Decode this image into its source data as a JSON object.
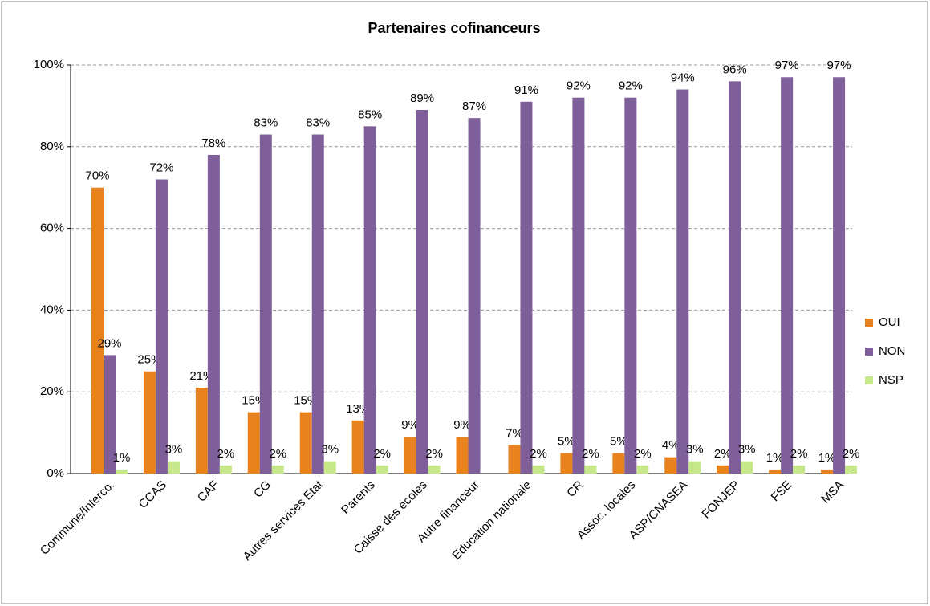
{
  "chart_data": {
    "type": "bar",
    "title": "Partenaires cofinanceurs",
    "categories": [
      "Commune/Interco.",
      "CCAS",
      "CAF",
      "CG",
      "Autres services Etat",
      "Parents",
      "Caisse des écoles",
      "Autre financeur",
      "Education nationale",
      "CR",
      "Assoc. locales",
      "ASP/CNASEA",
      "FONJEP",
      "FSE",
      "MSA"
    ],
    "series": [
      {
        "name": "OUI",
        "color": "#e8821e",
        "values": [
          70,
          25,
          21,
          15,
          15,
          13,
          9,
          9,
          7,
          5,
          5,
          4,
          2,
          1,
          1
        ],
        "value_labels": [
          "70%",
          "25%",
          "21%",
          "15%",
          "15%",
          "13%",
          "9%",
          "9%",
          "7%",
          "5%",
          "5%",
          "4%",
          "2%",
          "1%",
          "1%"
        ]
      },
      {
        "name": "NON",
        "color": "#7f5f9a",
        "values": [
          29,
          72,
          78,
          83,
          83,
          85,
          89,
          87,
          91,
          92,
          92,
          94,
          96,
          97,
          97
        ],
        "value_labels": [
          "29%",
          "72%",
          "78%",
          "83%",
          "83%",
          "85%",
          "89%",
          "87%",
          "91%",
          "92%",
          "92%",
          "94%",
          "96%",
          "97%",
          "97%"
        ]
      },
      {
        "name": "NSP",
        "color": "#c6e88a",
        "values": [
          1,
          3,
          2,
          2,
          3,
          2,
          2,
          null,
          2,
          2,
          2,
          3,
          3,
          2,
          2
        ],
        "value_labels": [
          "1%",
          "3%",
          "2%",
          "2%",
          "3%",
          "2%",
          "2%",
          null,
          "2%",
          "2%",
          "2%",
          "3%",
          "3%",
          "2%",
          "2%"
        ]
      }
    ],
    "ylim": [
      0,
      100
    ],
    "yticks": [
      {
        "value": 0,
        "label": "0%"
      },
      {
        "value": 20,
        "label": "20%"
      },
      {
        "value": 40,
        "label": "40%"
      },
      {
        "value": 60,
        "label": "60%"
      },
      {
        "value": 80,
        "label": "80%"
      },
      {
        "value": 100,
        "label": "100%"
      }
    ],
    "grid": true,
    "legend": "right"
  }
}
